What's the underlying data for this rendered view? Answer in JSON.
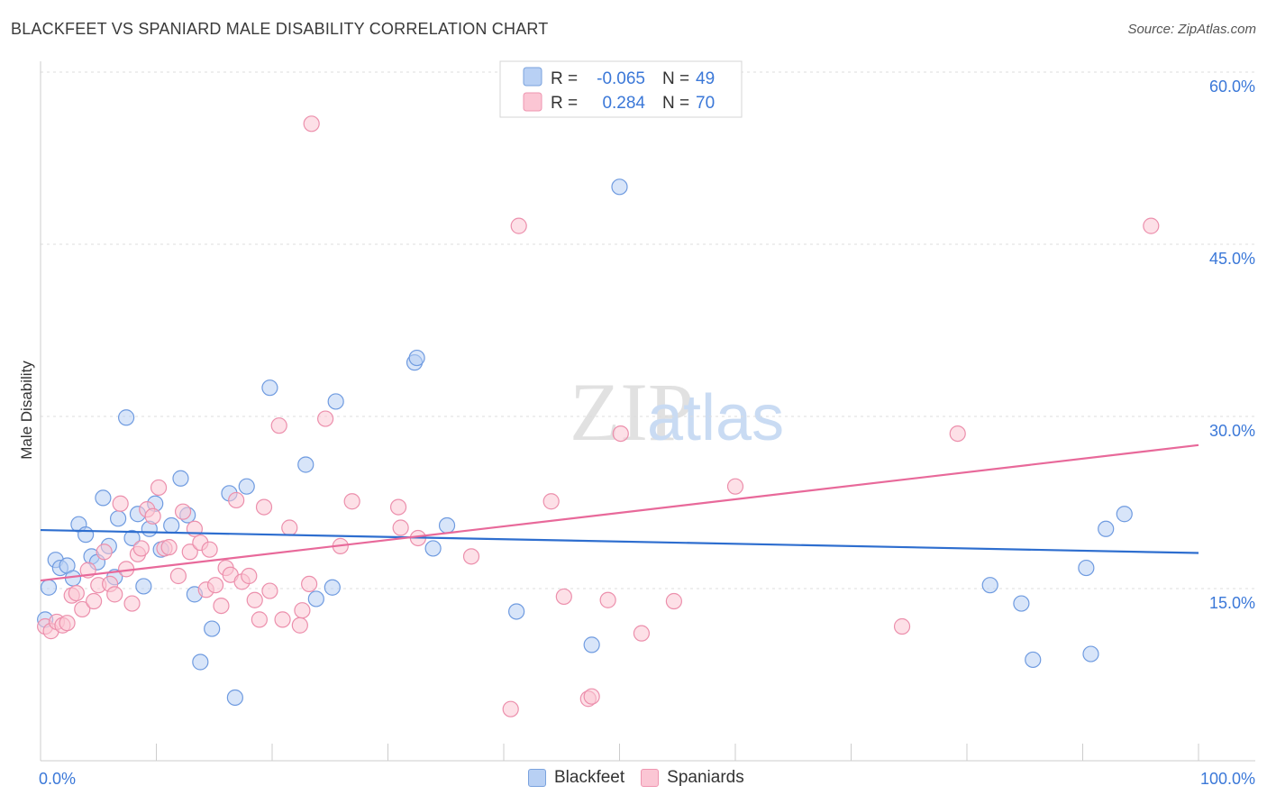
{
  "title": "BLACKFEET VS SPANIARD MALE DISABILITY CORRELATION CHART",
  "source": "Source: ZipAtlas.com",
  "watermark": {
    "zip": "ZIP",
    "atlas": "atlas"
  },
  "colors": {
    "blackfeet_fill": "#b8d0f4",
    "blackfeet_stroke": "#6f9be0",
    "blackfeet_line": "#2e6ecf",
    "spaniards_fill": "#fbc6d4",
    "spaniards_stroke": "#ec8fac",
    "spaniards_line": "#e8699a",
    "axis_text": "#3b78d8"
  },
  "stats_legend": [
    {
      "r_label": "R =",
      "r_value": "-0.065",
      "n_label": "N =",
      "n_value": "49"
    },
    {
      "r_label": "R =",
      "r_value": "0.284",
      "n_label": "N =",
      "n_value": "70"
    }
  ],
  "chart_data": {
    "type": "scatter",
    "title": "BLACKFEET VS SPANIARD MALE DISABILITY CORRELATION CHART",
    "xlabel": "",
    "ylabel": "Male Disability",
    "xlim": [
      0,
      100
    ],
    "ylim": [
      0,
      60
    ],
    "x_tick_labels": [
      "0.0%",
      "100.0%"
    ],
    "y_ticks": [
      15,
      30,
      45,
      60
    ],
    "y_tick_labels": [
      "15.0%",
      "30.0%",
      "45.0%",
      "60.0%"
    ],
    "grid": true,
    "legend_position": "bottom-center",
    "series": [
      {
        "name": "Blackfeet",
        "trend": {
          "x": [
            0,
            100
          ],
          "y": [
            20.1,
            18.1
          ]
        },
        "points": [
          [
            0.7,
            15.1
          ],
          [
            1.3,
            17.5
          ],
          [
            1.7,
            16.8
          ],
          [
            2.3,
            17.0
          ],
          [
            2.8,
            15.9
          ],
          [
            3.3,
            20.6
          ],
          [
            3.9,
            19.7
          ],
          [
            4.4,
            17.8
          ],
          [
            4.9,
            17.3
          ],
          [
            5.4,
            22.9
          ],
          [
            5.9,
            18.7
          ],
          [
            6.4,
            16.0
          ],
          [
            6.7,
            21.1
          ],
          [
            7.4,
            29.9
          ],
          [
            7.9,
            19.4
          ],
          [
            8.4,
            21.5
          ],
          [
            8.9,
            15.2
          ],
          [
            9.4,
            20.2
          ],
          [
            9.9,
            22.4
          ],
          [
            10.4,
            18.4
          ],
          [
            11.3,
            20.5
          ],
          [
            12.1,
            24.6
          ],
          [
            12.7,
            21.4
          ],
          [
            13.3,
            14.5
          ],
          [
            13.8,
            8.6
          ],
          [
            14.8,
            11.5
          ],
          [
            16.3,
            23.3
          ],
          [
            16.8,
            5.5
          ],
          [
            17.8,
            23.9
          ],
          [
            19.8,
            32.5
          ],
          [
            22.9,
            25.8
          ],
          [
            23.8,
            14.1
          ],
          [
            25.2,
            15.1
          ],
          [
            25.5,
            31.3
          ],
          [
            32.3,
            34.7
          ],
          [
            32.5,
            35.1
          ],
          [
            33.9,
            18.5
          ],
          [
            35.1,
            20.5
          ],
          [
            41.1,
            13.0
          ],
          [
            47.6,
            10.1
          ],
          [
            50.0,
            50.0
          ],
          [
            82.0,
            15.3
          ],
          [
            84.7,
            13.7
          ],
          [
            85.7,
            8.8
          ],
          [
            90.3,
            16.8
          ],
          [
            90.7,
            9.3
          ],
          [
            92.0,
            20.2
          ],
          [
            93.6,
            21.5
          ],
          [
            0.4,
            12.3
          ]
        ]
      },
      {
        "name": "Spaniards",
        "trend": {
          "x": [
            0,
            100
          ],
          "y": [
            15.7,
            27.5
          ]
        },
        "points": [
          [
            0.4,
            11.7
          ],
          [
            0.9,
            11.3
          ],
          [
            1.4,
            12.1
          ],
          [
            1.9,
            11.8
          ],
          [
            2.3,
            12.0
          ],
          [
            2.7,
            14.4
          ],
          [
            3.1,
            14.6
          ],
          [
            3.6,
            13.2
          ],
          [
            4.1,
            16.6
          ],
          [
            4.6,
            13.9
          ],
          [
            5.0,
            15.3
          ],
          [
            5.5,
            18.2
          ],
          [
            6.0,
            15.4
          ],
          [
            6.4,
            14.5
          ],
          [
            6.9,
            22.4
          ],
          [
            7.4,
            16.7
          ],
          [
            7.9,
            13.7
          ],
          [
            8.4,
            18.0
          ],
          [
            8.7,
            18.5
          ],
          [
            9.2,
            21.9
          ],
          [
            9.7,
            21.3
          ],
          [
            10.2,
            23.8
          ],
          [
            10.7,
            18.5
          ],
          [
            11.1,
            18.6
          ],
          [
            11.9,
            16.1
          ],
          [
            12.3,
            21.7
          ],
          [
            12.9,
            18.2
          ],
          [
            13.3,
            20.2
          ],
          [
            13.8,
            19.0
          ],
          [
            14.3,
            14.9
          ],
          [
            14.6,
            18.4
          ],
          [
            15.1,
            15.3
          ],
          [
            15.6,
            13.5
          ],
          [
            16.0,
            16.8
          ],
          [
            16.4,
            16.2
          ],
          [
            16.9,
            22.7
          ],
          [
            17.4,
            15.6
          ],
          [
            18.0,
            16.1
          ],
          [
            18.5,
            14.0
          ],
          [
            18.9,
            12.3
          ],
          [
            19.3,
            22.1
          ],
          [
            19.8,
            14.8
          ],
          [
            20.6,
            29.2
          ],
          [
            20.9,
            12.3
          ],
          [
            21.5,
            20.3
          ],
          [
            22.4,
            11.8
          ],
          [
            22.6,
            13.1
          ],
          [
            23.2,
            15.4
          ],
          [
            23.4,
            55.5
          ],
          [
            24.6,
            29.8
          ],
          [
            25.9,
            18.7
          ],
          [
            26.9,
            22.6
          ],
          [
            30.9,
            22.1
          ],
          [
            31.1,
            20.3
          ],
          [
            32.6,
            19.4
          ],
          [
            37.2,
            17.8
          ],
          [
            40.6,
            4.5
          ],
          [
            41.3,
            46.6
          ],
          [
            44.1,
            22.6
          ],
          [
            45.2,
            14.3
          ],
          [
            47.3,
            5.4
          ],
          [
            47.6,
            5.6
          ],
          [
            49.0,
            14.0
          ],
          [
            50.1,
            28.5
          ],
          [
            51.9,
            11.1
          ],
          [
            54.7,
            13.9
          ],
          [
            60.0,
            23.9
          ],
          [
            74.4,
            11.7
          ],
          [
            79.2,
            28.5
          ],
          [
            95.9,
            46.6
          ]
        ]
      }
    ]
  }
}
